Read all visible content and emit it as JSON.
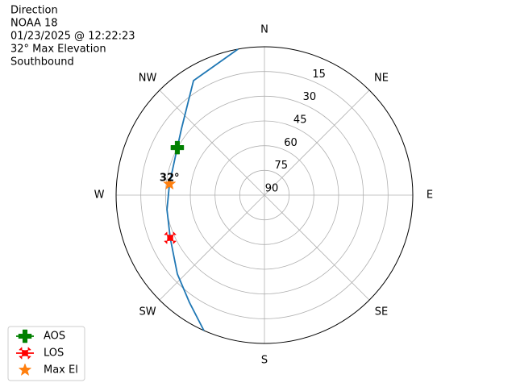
{
  "chart_data": {
    "type": "polar",
    "title_lines": [
      "Direction",
      "NOAA 18",
      "01/23/2025 @ 12:22:23",
      "32° Max Elevation",
      "Southbound"
    ],
    "rlim": [
      90,
      0
    ],
    "rticks": [
      15,
      30,
      45,
      60,
      75,
      90
    ],
    "thetaticks": [
      {
        "value": 0,
        "label": "N"
      },
      {
        "value": 45,
        "label": "NE"
      },
      {
        "value": 90,
        "label": "E"
      },
      {
        "value": 135,
        "label": "SE"
      },
      {
        "value": 180,
        "label": "S"
      },
      {
        "value": 225,
        "label": "SW"
      },
      {
        "value": 270,
        "label": "W"
      },
      {
        "value": 315,
        "label": "NW"
      }
    ],
    "grid": true,
    "track": {
      "color": "#1f77b4",
      "azimuth": [
        349.7,
        328.2,
        308.5,
        298.6,
        276.7,
        261.5,
        245.6,
        227.8,
        215,
        204.1
      ],
      "elevation": [
        0,
        8.3,
        25.6,
        29.8,
        32,
        30.2,
        27.2,
        18.7,
        10.6,
        0
      ]
    },
    "series": [
      {
        "name": "AOS",
        "color": "#008000",
        "marker": "plus",
        "azimuth": [
          298.6
        ],
        "elevation": [
          29.8
        ]
      },
      {
        "name": "LOS",
        "color": "#ff0000",
        "marker": "x",
        "azimuth": [
          245.6
        ],
        "elevation": [
          27.2
        ]
      },
      {
        "name": "Max El",
        "color": "#ff7f0e",
        "marker": "star",
        "azimuth": [
          276.7
        ],
        "elevation": [
          32
        ],
        "value_labels": [
          "32°"
        ]
      }
    ],
    "legend": "lower left"
  }
}
